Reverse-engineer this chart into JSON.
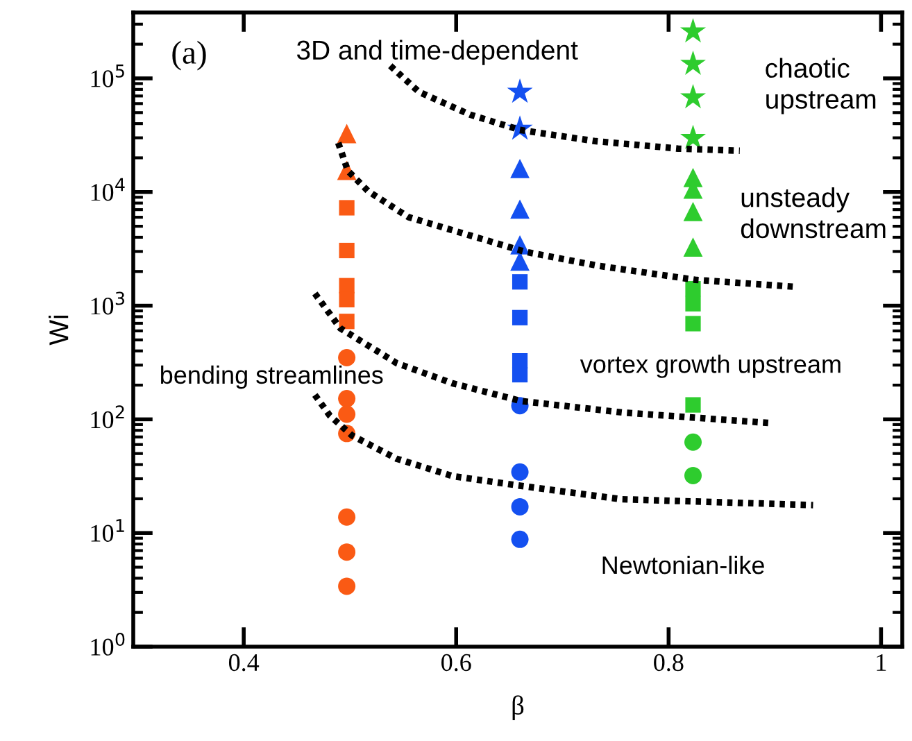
{
  "chart_data": {
    "type": "scatter",
    "xlabel": "β",
    "ylabel": "Wi",
    "log": "y",
    "xlim": [
      0.296,
      1.02
    ],
    "ylim": [
      1,
      380000
    ],
    "xticks": [
      0.4,
      0.6,
      0.8,
      1
    ],
    "yticks": [
      {
        "value": 1,
        "label": "10$^{0}$"
      },
      {
        "value": 10,
        "label": "10$^{1}$"
      },
      {
        "value": 100,
        "label": "10$^{2}$"
      },
      {
        "value": 1000,
        "label": "10$^{3}$"
      },
      {
        "value": 10000,
        "label": "10$^{4}$"
      },
      {
        "value": 100000,
        "label": "10$^{5}$"
      }
    ],
    "grid": false,
    "legend": false,
    "annotations": [
      "(a)",
      "3D and time-dependent",
      "chaotic\nupstream",
      "unsteady\ndownstream",
      "vortex growth upstream",
      "bending streamlines",
      "Newtonian-like"
    ],
    "series": [
      {
        "marker": "circle",
        "color": "#fa5a14",
        "x": [
          0.497,
          0.497,
          0.497,
          0.497
        ],
        "values": [
          75,
          13.8,
          6.8,
          3.4
        ]
      },
      {
        "marker": "circle",
        "color": "#fa5a14",
        "x": [
          0.497,
          0.497,
          0.497
        ],
        "values": [
          349,
          152,
          111
        ]
      },
      {
        "marker": "square",
        "color": "#fa5a14",
        "x": [
          0.497,
          0.497,
          0.497,
          0.497,
          0.497
        ],
        "values": [
          7270,
          3060,
          1500,
          1130,
          727
        ]
      },
      {
        "marker": "triangle",
        "color": "#fa5a14",
        "x": [
          0.497,
          0.497
        ],
        "values": [
          32700,
          15500
        ]
      },
      {
        "marker": "circle",
        "color": "#1450f0",
        "x": [
          0.66,
          0.66,
          0.66
        ],
        "values": [
          34.4,
          17,
          8.8
        ]
      },
      {
        "marker": "circle",
        "color": "#1450f0",
        "x": [
          0.66
        ],
        "values": [
          132
        ]
      },
      {
        "marker": "square",
        "color": "#1450f0",
        "x": [
          0.66,
          0.66,
          0.66,
          0.66
        ],
        "values": [
          1620,
          785,
          327,
          247
        ]
      },
      {
        "marker": "triangle",
        "color": "#1450f0",
        "x": [
          0.66,
          0.66,
          0.66,
          0.66
        ],
        "values": [
          16100,
          7070,
          3430,
          2470
        ]
      },
      {
        "marker": "star",
        "color": "#1450f0",
        "x": [
          0.66,
          0.66
        ],
        "values": [
          76000,
          36000
        ]
      },
      {
        "marker": "circle",
        "color": "#2ecc2e",
        "x": [
          0.823,
          0.823
        ],
        "values": [
          63,
          32
        ]
      },
      {
        "marker": "square",
        "color": "#2ecc2e",
        "x": [
          0.823,
          0.823,
          0.823,
          0.823
        ],
        "values": [
          1410,
          1040,
          695,
          134
        ]
      },
      {
        "marker": "triangle",
        "color": "#2ecc2e",
        "x": [
          0.823,
          0.823,
          0.823,
          0.823
        ],
        "values": [
          13400,
          10600,
          6740,
          3280
        ]
      },
      {
        "marker": "star",
        "color": "#2ecc2e",
        "x": [
          0.823,
          0.823,
          0.823,
          0.823
        ],
        "values": [
          258000,
          134000,
          68000,
          29800
        ]
      },
      {
        "type": "line",
        "marker": "none",
        "line_style": "dotted",
        "color": "#000000",
        "x": [
          0.538,
          0.565,
          0.613,
          0.66,
          0.73,
          0.809,
          0.867
        ],
        "values": [
          129000,
          76000,
          48000,
          35200,
          28100,
          24100,
          23100
        ]
      },
      {
        "type": "line",
        "marker": "none",
        "line_style": "dotted",
        "color": "#000000",
        "x": [
          0.489,
          0.498,
          0.517,
          0.555,
          0.606,
          0.665,
          0.733,
          0.825,
          0.917
        ],
        "values": [
          27100,
          15400,
          10200,
          6020,
          4340,
          2980,
          2250,
          1690,
          1470
        ]
      },
      {
        "type": "line",
        "marker": "none",
        "line_style": "dotted",
        "color": "#000000",
        "x": [
          0.467,
          0.491,
          0.544,
          0.597,
          0.661,
          0.756,
          0.894
        ],
        "values": [
          1280,
          632,
          312,
          207,
          145,
          115,
          93
        ]
      },
      {
        "type": "line",
        "marker": "none",
        "line_style": "dotted",
        "color": "#000000",
        "x": [
          0.467,
          0.481,
          0.502,
          0.544,
          0.597,
          0.661,
          0.756,
          0.936
        ],
        "values": [
          164,
          108,
          72,
          45,
          31.6,
          26,
          19.8,
          17.6
        ]
      }
    ]
  }
}
